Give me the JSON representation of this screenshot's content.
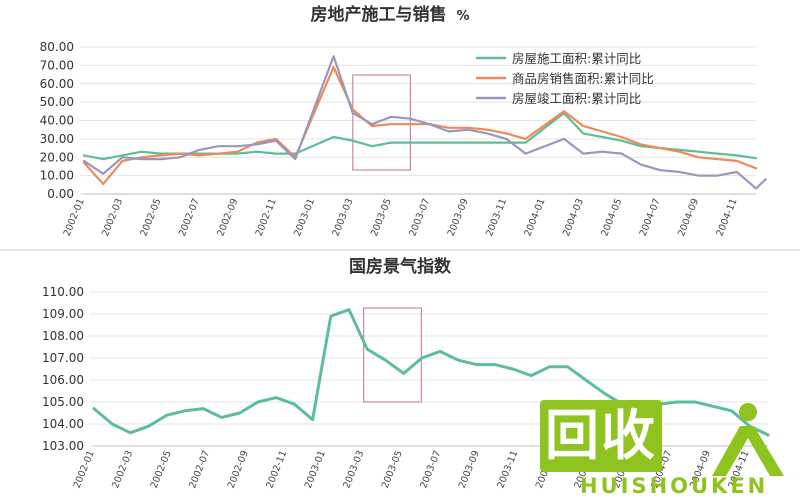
{
  "chart_data": [
    {
      "type": "line",
      "title": "房地产施工与销售",
      "title_unit": "%",
      "x_labels": [
        "2002-01",
        "2002-03",
        "2002-05",
        "2002-07",
        "2002-09",
        "2002-11",
        "2003-01",
        "2003-03",
        "2003-05",
        "2003-07",
        "2003-09",
        "2003-11",
        "2004-01",
        "2004-03",
        "2004-05",
        "2004-07",
        "2004-09",
        "2004-11"
      ],
      "ylim": [
        0,
        80
      ],
      "y_ticks": [
        "80.00",
        "70.00",
        "60.00",
        "50.00",
        "40.00",
        "30.00",
        "20.00",
        "10.00",
        "0.00"
      ],
      "grid": true,
      "legend": "top-right",
      "highlight_box": [
        "2003-03",
        "2003-06"
      ],
      "series": [
        {
          "name": "房屋施工面积:累计同比",
          "color": "#5bbf96",
          "x": [
            "2002-01",
            "2002-02",
            "2002-03",
            "2002-04",
            "2002-05",
            "2002-06",
            "2002-07",
            "2002-08",
            "2002-09",
            "2002-10",
            "2002-11",
            "2002-12",
            "2003-02",
            "2003-03",
            "2003-04",
            "2003-05",
            "2003-06",
            "2003-07",
            "2003-08",
            "2003-09",
            "2003-10",
            "2003-11",
            "2003-12",
            "2004-02",
            "2004-03",
            "2004-04",
            "2004-05",
            "2004-06",
            "2004-07",
            "2004-08",
            "2004-09",
            "2004-10",
            "2004-11",
            "2004-12"
          ],
          "values": [
            21,
            19,
            21,
            23,
            22,
            22,
            22,
            22,
            22,
            23,
            22,
            22,
            31,
            29,
            26,
            28,
            28,
            28,
            28,
            28,
            28,
            28,
            28,
            44,
            33,
            31,
            29,
            26,
            25,
            24,
            23,
            22,
            21,
            19.5
          ]
        },
        {
          "name": "商品房销售面积:累计同比",
          "color": "#ee8a5a",
          "x": [
            "2002-01",
            "2002-02",
            "2002-03",
            "2002-04",
            "2002-05",
            "2002-06",
            "2002-07",
            "2002-08",
            "2002-09",
            "2002-10",
            "2002-11",
            "2002-12",
            "2003-02",
            "2003-03",
            "2003-04",
            "2003-05",
            "2003-06",
            "2003-07",
            "2003-08",
            "2003-09",
            "2003-10",
            "2003-11",
            "2003-12",
            "2004-02",
            "2004-03",
            "2004-04",
            "2004-05",
            "2004-06",
            "2004-07",
            "2004-08",
            "2004-09",
            "2004-10",
            "2004-11",
            "2004-12"
          ],
          "values": [
            17,
            5.5,
            18,
            20,
            21,
            22,
            21,
            22,
            23,
            28,
            30,
            20,
            69,
            46,
            37,
            38,
            38,
            38,
            36,
            36,
            35,
            33,
            30,
            45,
            37,
            34,
            31,
            27,
            25,
            23,
            20,
            19,
            18,
            14
          ]
        },
        {
          "name": "房屋竣工面积:累计同比",
          "color": "#9a97bf",
          "x": [
            "2002-01",
            "2002-02",
            "2002-03",
            "2002-04",
            "2002-05",
            "2002-06",
            "2002-07",
            "2002-08",
            "2002-09",
            "2002-10",
            "2002-11",
            "2002-12",
            "2003-02",
            "2003-03",
            "2003-04",
            "2003-05",
            "2003-06",
            "2003-07",
            "2003-08",
            "2003-09",
            "2003-10",
            "2003-11",
            "2003-12",
            "2004-02",
            "2004-03",
            "2004-04",
            "2004-05",
            "2004-06",
            "2004-07",
            "2004-08",
            "2004-09",
            "2004-10",
            "2004-11",
            "2004-12",
            "2004-12b"
          ],
          "values": [
            18,
            11,
            20,
            19,
            19,
            20,
            24,
            26,
            26,
            27,
            29,
            19,
            75,
            44,
            38,
            42,
            41,
            38,
            34,
            35,
            33,
            30,
            22,
            30,
            22,
            23,
            22,
            16,
            13,
            12,
            10,
            10,
            12,
            3,
            8
          ]
        }
      ]
    },
    {
      "type": "line",
      "title": "国房景气指数",
      "x_labels": [
        "2002-01",
        "2002-03",
        "2002-05",
        "2002-07",
        "2002-09",
        "2002-11",
        "2003-01",
        "2003-03",
        "2003-05",
        "2003-07",
        "2003-09",
        "2003-11",
        "2004-01",
        "2004-03",
        "2004-05",
        "2004-07",
        "2004-09",
        "2004-11"
      ],
      "ylim": [
        103,
        110
      ],
      "y_ticks": [
        "110.00",
        "109.00",
        "108.00",
        "107.00",
        "106.00",
        "105.00",
        "104.00",
        "103.00"
      ],
      "grid": true,
      "highlight_box": [
        "2003-03",
        "2003-06"
      ],
      "series": [
        {
          "color": "#5bbf96",
          "values": [
            104.7,
            104.0,
            103.6,
            103.9,
            104.4,
            104.6,
            104.7,
            104.3,
            104.5,
            105.0,
            105.2,
            104.9,
            104.2,
            108.9,
            109.2,
            107.4,
            106.9,
            106.3,
            107.0,
            107.3,
            106.9,
            106.7,
            106.7,
            106.5,
            106.2,
            106.6,
            106.6,
            106.0,
            105.4,
            104.9,
            104.8,
            104.9,
            105.0,
            105.0,
            104.8,
            104.6,
            103.9,
            103.5
          ]
        }
      ]
    }
  ],
  "watermark": {
    "mark": "回收",
    "text": "HUISHOUKEN"
  }
}
